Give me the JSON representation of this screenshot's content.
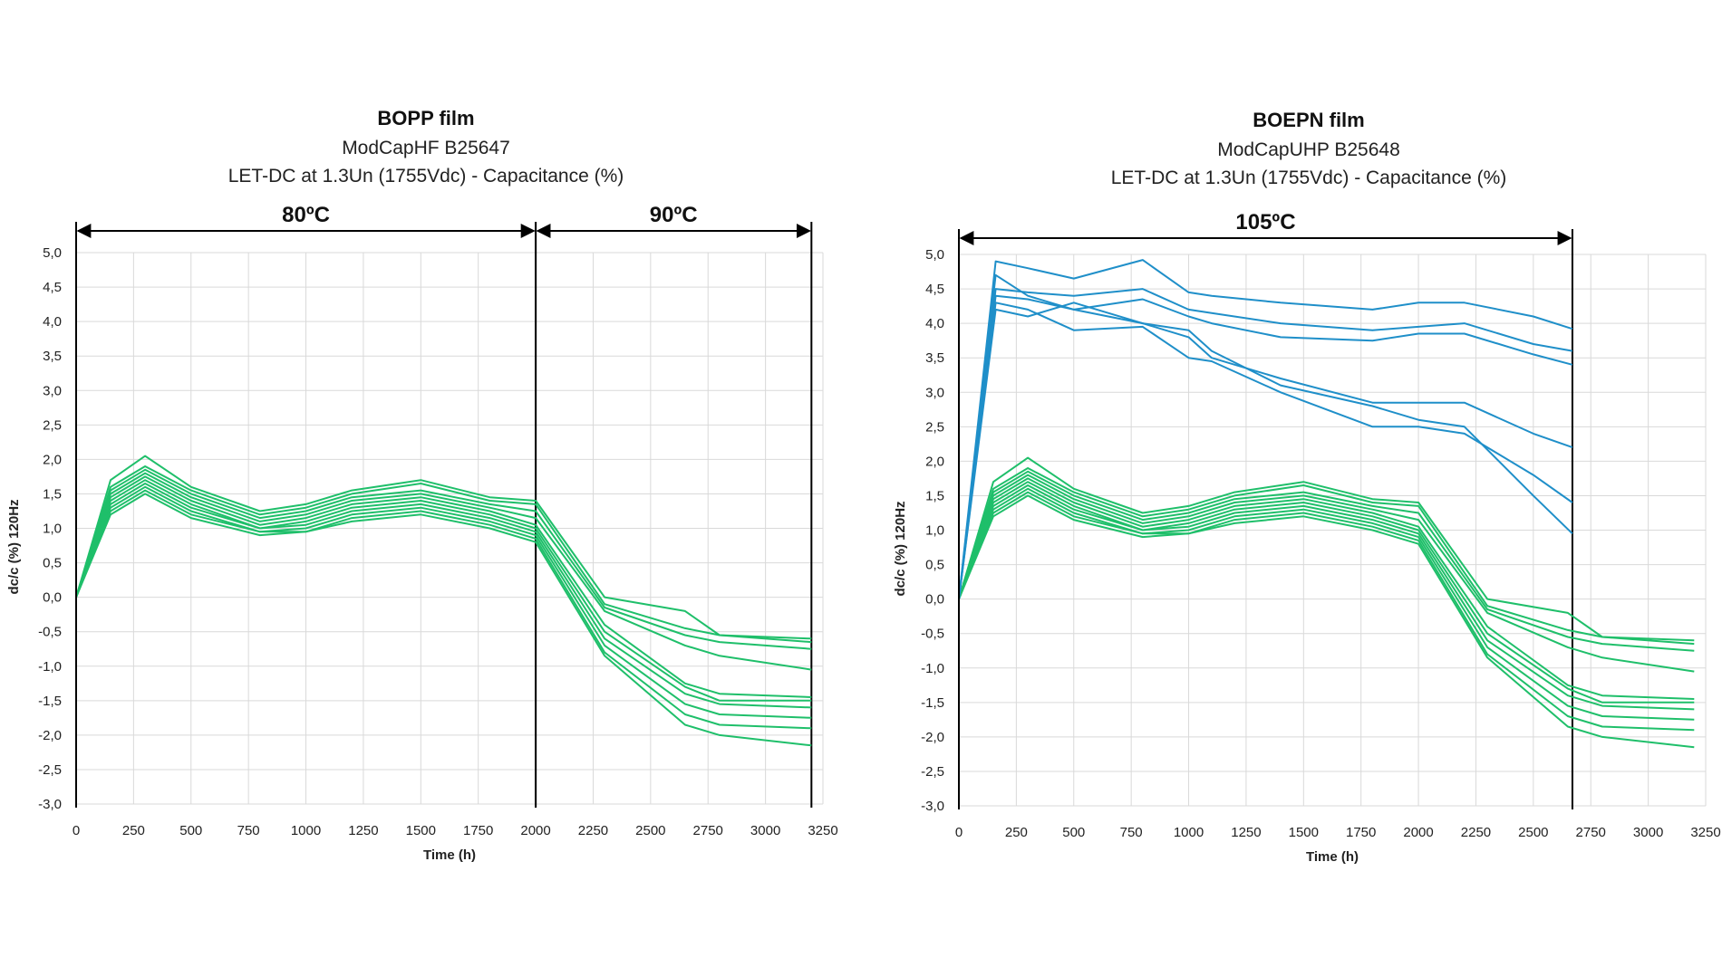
{
  "chart_data": [
    {
      "type": "line",
      "title": "BOPP film",
      "subtitle": [
        "ModCapHF B25647",
        "LET-DC at 1.3Un (1755Vdc) - Capacitance (%)"
      ],
      "xlabel": "Time (h)",
      "ylabel": "dc/c (%) 120Hz",
      "xlim": [
        0,
        3250
      ],
      "ylim": [
        -3.0,
        5.0
      ],
      "x_ticks": [
        "0",
        "250",
        "500",
        "750",
        "1000",
        "1250",
        "1500",
        "1750",
        "2000",
        "2250",
        "2500",
        "2750",
        "3000",
        "3250"
      ],
      "y_ticks": [
        "5,0",
        "4,5",
        "4,0",
        "3,5",
        "3,0",
        "2,5",
        "2,0",
        "1,5",
        "1,0",
        "0,5",
        "0,0",
        "-0,5",
        "-1,0",
        "-1,5",
        "-2,0",
        "-2,5",
        "-3,0"
      ],
      "temperature_zones": [
        {
          "label": "80ºC",
          "from": 0,
          "to": 2000
        },
        {
          "label": "90ºC",
          "from": 2000,
          "to": 3200
        }
      ],
      "series": [
        {
          "name": "green-1",
          "color": "#1fbf6a",
          "x": [
            0,
            150,
            300,
            500,
            800,
            1000,
            1200,
            1500,
            1800,
            2000,
            2300,
            2650,
            2800,
            3200
          ],
          "y": [
            0,
            1.7,
            2.05,
            1.6,
            1.25,
            1.35,
            1.55,
            1.7,
            1.45,
            1.4,
            0.0,
            -0.2,
            -0.55,
            -0.6
          ]
        },
        {
          "name": "green-2",
          "color": "#1fbf6a",
          "x": [
            0,
            150,
            300,
            500,
            800,
            1000,
            1200,
            1500,
            1800,
            2000,
            2300,
            2650,
            2800,
            3200
          ],
          "y": [
            0,
            1.6,
            1.9,
            1.55,
            1.2,
            1.3,
            1.5,
            1.65,
            1.4,
            1.35,
            -0.1,
            -0.45,
            -0.55,
            -0.65
          ]
        },
        {
          "name": "green-3",
          "color": "#1fbf6a",
          "x": [
            0,
            150,
            300,
            500,
            800,
            1000,
            1200,
            1500,
            1800,
            2000,
            2300,
            2650,
            2800,
            3200
          ],
          "y": [
            0,
            1.55,
            1.85,
            1.5,
            1.15,
            1.25,
            1.45,
            1.55,
            1.35,
            1.25,
            -0.15,
            -0.55,
            -0.65,
            -0.75
          ]
        },
        {
          "name": "green-4",
          "color": "#1fbf6a",
          "x": [
            0,
            150,
            300,
            500,
            800,
            1000,
            1200,
            1500,
            1800,
            2000,
            2300,
            2650,
            2800,
            3200
          ],
          "y": [
            0,
            1.5,
            1.8,
            1.45,
            1.1,
            1.2,
            1.4,
            1.5,
            1.3,
            1.15,
            -0.2,
            -0.7,
            -0.85,
            -1.05
          ]
        },
        {
          "name": "green-5",
          "color": "#1fbf6a",
          "x": [
            0,
            150,
            300,
            500,
            800,
            1000,
            1200,
            1500,
            1800,
            2000,
            2300,
            2650,
            2800,
            3200
          ],
          "y": [
            0,
            1.45,
            1.75,
            1.4,
            1.05,
            1.15,
            1.35,
            1.45,
            1.25,
            1.05,
            -0.4,
            -1.25,
            -1.4,
            -1.45
          ]
        },
        {
          "name": "green-6",
          "color": "#1fbf6a",
          "x": [
            0,
            150,
            300,
            500,
            800,
            1000,
            1200,
            1500,
            1800,
            2000,
            2300,
            2650,
            2800,
            3200
          ],
          "y": [
            0,
            1.4,
            1.7,
            1.35,
            1.0,
            1.1,
            1.3,
            1.4,
            1.2,
            1.0,
            -0.5,
            -1.3,
            -1.5,
            -1.5
          ]
        },
        {
          "name": "green-7",
          "color": "#1fbf6a",
          "x": [
            0,
            150,
            300,
            500,
            800,
            1000,
            1200,
            1500,
            1800,
            2000,
            2300,
            2650,
            2800,
            3200
          ],
          "y": [
            0,
            1.35,
            1.65,
            1.3,
            1.0,
            1.05,
            1.25,
            1.35,
            1.15,
            0.95,
            -0.6,
            -1.4,
            -1.55,
            -1.6
          ]
        },
        {
          "name": "green-8",
          "color": "#1fbf6a",
          "x": [
            0,
            150,
            300,
            500,
            800,
            1000,
            1200,
            1500,
            1800,
            2000,
            2300,
            2650,
            2800,
            3200
          ],
          "y": [
            0,
            1.3,
            1.6,
            1.25,
            0.95,
            1.0,
            1.2,
            1.3,
            1.1,
            0.9,
            -0.7,
            -1.55,
            -1.7,
            -1.75
          ]
        },
        {
          "name": "green-9",
          "color": "#1fbf6a",
          "x": [
            0,
            150,
            300,
            500,
            800,
            1000,
            1200,
            1500,
            1800,
            2000,
            2300,
            2650,
            2800,
            3200
          ],
          "y": [
            0,
            1.25,
            1.55,
            1.2,
            0.95,
            0.95,
            1.15,
            1.25,
            1.05,
            0.85,
            -0.8,
            -1.7,
            -1.85,
            -1.9
          ]
        },
        {
          "name": "green-10",
          "color": "#1fbf6a",
          "x": [
            0,
            150,
            300,
            500,
            800,
            1000,
            1200,
            1500,
            1800,
            2000,
            2300,
            2650,
            2800,
            3200
          ],
          "y": [
            0,
            1.2,
            1.5,
            1.15,
            0.9,
            0.95,
            1.1,
            1.2,
            1.0,
            0.8,
            -0.85,
            -1.85,
            -2.0,
            -2.15
          ]
        }
      ]
    },
    {
      "type": "line",
      "title": "BOEPN film",
      "subtitle": [
        "ModCapUHP B25648",
        "LET-DC at 1.3Un (1755Vdc) - Capacitance (%)"
      ],
      "xlabel": "Time (h)",
      "ylabel": "dc/c (%) 120Hz",
      "xlim": [
        0,
        3250
      ],
      "ylim": [
        -3.0,
        5.0
      ],
      "x_ticks": [
        "0",
        "250",
        "500",
        "750",
        "1000",
        "1250",
        "1500",
        "1750",
        "2000",
        "2250",
        "2500",
        "2750",
        "3000",
        "3250"
      ],
      "y_ticks": [
        "5,0",
        "4,5",
        "4,0",
        "3,5",
        "3,0",
        "2,5",
        "2,0",
        "1,5",
        "1,0",
        "0,5",
        "0,0",
        "-0,5",
        "-1,0",
        "-1,5",
        "-2,0",
        "-2,5",
        "-3,0"
      ],
      "temperature_zones": [
        {
          "label": "105ºC",
          "from": 0,
          "to": 2670
        }
      ],
      "series": [
        {
          "name": "green-1",
          "color": "#1fbf6a",
          "x": [
            0,
            150,
            300,
            500,
            800,
            1000,
            1200,
            1500,
            1800,
            2000,
            2300,
            2650,
            2800,
            3200
          ],
          "y": [
            0,
            1.7,
            2.05,
            1.6,
            1.25,
            1.35,
            1.55,
            1.7,
            1.45,
            1.4,
            0.0,
            -0.2,
            -0.55,
            -0.6
          ]
        },
        {
          "name": "green-2",
          "color": "#1fbf6a",
          "x": [
            0,
            150,
            300,
            500,
            800,
            1000,
            1200,
            1500,
            1800,
            2000,
            2300,
            2650,
            2800,
            3200
          ],
          "y": [
            0,
            1.6,
            1.9,
            1.55,
            1.2,
            1.3,
            1.5,
            1.65,
            1.4,
            1.35,
            -0.1,
            -0.45,
            -0.55,
            -0.65
          ]
        },
        {
          "name": "green-3",
          "color": "#1fbf6a",
          "x": [
            0,
            150,
            300,
            500,
            800,
            1000,
            1200,
            1500,
            1800,
            2000,
            2300,
            2650,
            2800,
            3200
          ],
          "y": [
            0,
            1.55,
            1.85,
            1.5,
            1.15,
            1.25,
            1.45,
            1.55,
            1.35,
            1.25,
            -0.15,
            -0.55,
            -0.65,
            -0.75
          ]
        },
        {
          "name": "green-4",
          "color": "#1fbf6a",
          "x": [
            0,
            150,
            300,
            500,
            800,
            1000,
            1200,
            1500,
            1800,
            2000,
            2300,
            2650,
            2800,
            3200
          ],
          "y": [
            0,
            1.5,
            1.8,
            1.45,
            1.1,
            1.2,
            1.4,
            1.5,
            1.3,
            1.15,
            -0.2,
            -0.7,
            -0.85,
            -1.05
          ]
        },
        {
          "name": "green-5",
          "color": "#1fbf6a",
          "x": [
            0,
            150,
            300,
            500,
            800,
            1000,
            1200,
            1500,
            1800,
            2000,
            2300,
            2650,
            2800,
            3200
          ],
          "y": [
            0,
            1.45,
            1.75,
            1.4,
            1.05,
            1.15,
            1.35,
            1.45,
            1.25,
            1.05,
            -0.4,
            -1.25,
            -1.4,
            -1.45
          ]
        },
        {
          "name": "green-6",
          "color": "#1fbf6a",
          "x": [
            0,
            150,
            300,
            500,
            800,
            1000,
            1200,
            1500,
            1800,
            2000,
            2300,
            2650,
            2800,
            3200
          ],
          "y": [
            0,
            1.4,
            1.7,
            1.35,
            1.0,
            1.1,
            1.3,
            1.4,
            1.2,
            1.0,
            -0.5,
            -1.3,
            -1.5,
            -1.5
          ]
        },
        {
          "name": "green-7",
          "color": "#1fbf6a",
          "x": [
            0,
            150,
            300,
            500,
            800,
            1000,
            1200,
            1500,
            1800,
            2000,
            2300,
            2650,
            2800,
            3200
          ],
          "y": [
            0,
            1.35,
            1.65,
            1.3,
            1.0,
            1.05,
            1.25,
            1.35,
            1.15,
            0.95,
            -0.6,
            -1.4,
            -1.55,
            -1.6
          ]
        },
        {
          "name": "green-8",
          "color": "#1fbf6a",
          "x": [
            0,
            150,
            300,
            500,
            800,
            1000,
            1200,
            1500,
            1800,
            2000,
            2300,
            2650,
            2800,
            3200
          ],
          "y": [
            0,
            1.3,
            1.6,
            1.25,
            0.95,
            1.0,
            1.2,
            1.3,
            1.1,
            0.9,
            -0.7,
            -1.55,
            -1.7,
            -1.75
          ]
        },
        {
          "name": "green-9",
          "color": "#1fbf6a",
          "x": [
            0,
            150,
            300,
            500,
            800,
            1000,
            1200,
            1500,
            1800,
            2000,
            2300,
            2650,
            2800,
            3200
          ],
          "y": [
            0,
            1.25,
            1.55,
            1.2,
            0.95,
            0.95,
            1.15,
            1.25,
            1.05,
            0.85,
            -0.8,
            -1.7,
            -1.85,
            -1.9
          ]
        },
        {
          "name": "green-10",
          "color": "#1fbf6a",
          "x": [
            0,
            150,
            300,
            500,
            800,
            1000,
            1200,
            1500,
            1800,
            2000,
            2300,
            2650,
            2800,
            3200
          ],
          "y": [
            0,
            1.2,
            1.5,
            1.15,
            0.9,
            0.95,
            1.1,
            1.2,
            1.0,
            0.8,
            -0.85,
            -1.85,
            -2.0,
            -2.15
          ]
        },
        {
          "name": "blue-1",
          "color": "#1f8fc9",
          "x": [
            0,
            160,
            300,
            500,
            800,
            1000,
            1100,
            1400,
            1800,
            2000,
            2200,
            2500,
            2670
          ],
          "y": [
            0,
            4.9,
            4.8,
            4.65,
            4.92,
            4.45,
            4.4,
            4.3,
            4.2,
            4.3,
            4.3,
            4.1,
            3.92
          ]
        },
        {
          "name": "blue-2",
          "color": "#1f8fc9",
          "x": [
            0,
            160,
            300,
            500,
            800,
            1000,
            1100,
            1400,
            1800,
            2000,
            2200,
            2500,
            2670
          ],
          "y": [
            0,
            4.5,
            4.45,
            4.4,
            4.5,
            4.2,
            4.15,
            4.0,
            3.9,
            3.95,
            4.0,
            3.7,
            3.6
          ]
        },
        {
          "name": "blue-3",
          "color": "#1f8fc9",
          "x": [
            0,
            160,
            300,
            500,
            800,
            1000,
            1100,
            1400,
            1800,
            2000,
            2200,
            2500,
            2670
          ],
          "y": [
            0,
            4.4,
            4.35,
            4.2,
            4.35,
            4.1,
            4.0,
            3.8,
            3.75,
            3.85,
            3.85,
            3.55,
            3.4
          ]
        },
        {
          "name": "blue-4",
          "color": "#1f8fc9",
          "x": [
            0,
            160,
            300,
            500,
            800,
            1000,
            1100,
            1400,
            1800,
            2000,
            2200,
            2500,
            2670
          ],
          "y": [
            0,
            4.7,
            4.4,
            4.2,
            4.0,
            3.8,
            3.5,
            3.2,
            2.85,
            2.85,
            2.85,
            2.4,
            2.2
          ]
        },
        {
          "name": "blue-5",
          "color": "#1f8fc9",
          "x": [
            0,
            160,
            300,
            500,
            800,
            1000,
            1100,
            1400,
            1800,
            2000,
            2200,
            2500,
            2670
          ],
          "y": [
            0,
            4.3,
            4.2,
            3.9,
            3.95,
            3.5,
            3.45,
            3.0,
            2.5,
            2.5,
            2.4,
            1.8,
            1.4
          ]
        },
        {
          "name": "blue-6",
          "color": "#1f8fc9",
          "x": [
            0,
            160,
            300,
            500,
            800,
            1000,
            1100,
            1400,
            1800,
            2000,
            2200,
            2500,
            2670
          ],
          "y": [
            0,
            4.2,
            4.1,
            4.3,
            4.0,
            3.9,
            3.6,
            3.1,
            2.8,
            2.6,
            2.5,
            1.5,
            0.95
          ]
        }
      ]
    }
  ]
}
